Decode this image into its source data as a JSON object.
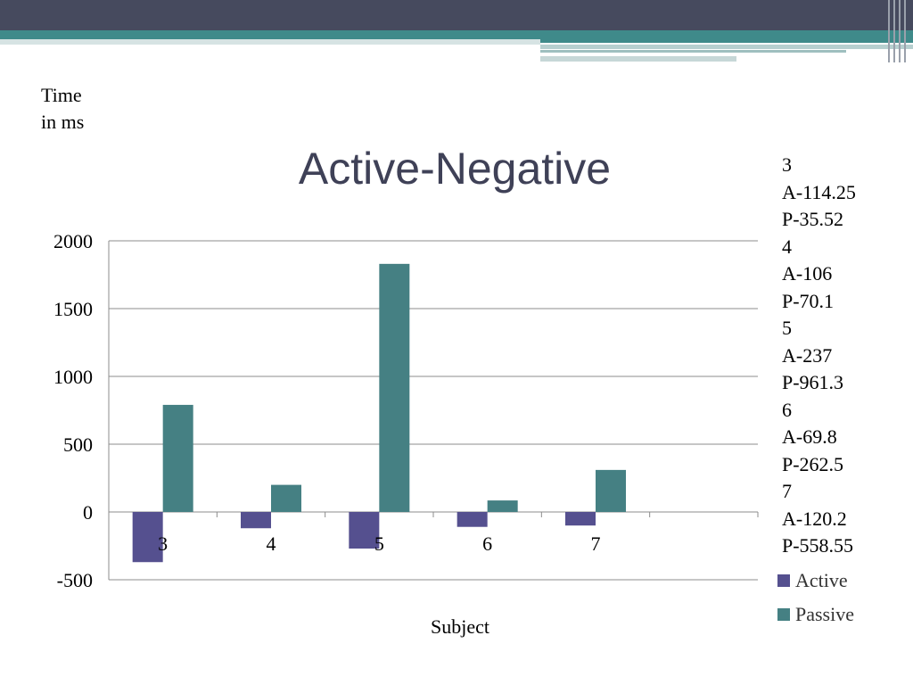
{
  "chart_data": {
    "type": "bar",
    "title": "Active-Negative",
    "ylabel_lines": [
      "Time",
      "in ms"
    ],
    "xlabel": "Subject",
    "categories": [
      "3",
      "4",
      "5",
      "6",
      "7"
    ],
    "ylim": [
      -500,
      2000
    ],
    "yticks": [
      2000,
      1500,
      1000,
      500,
      0,
      -500
    ],
    "grid": true,
    "legend_position": "bottom-right",
    "series": [
      {
        "name": "Active",
        "color": "#55508f",
        "values": [
          -370,
          -120,
          -270,
          -110,
          -100
        ]
      },
      {
        "name": "Passive",
        "color": "#458083",
        "values": [
          790,
          200,
          1830,
          85,
          310
        ]
      }
    ],
    "notes": [
      "3",
      "A-114.25",
      "P-35.52",
      "4",
      "A-106",
      "P-70.1",
      "5",
      "A-237",
      "P-961.3",
      "6",
      "A-69.8",
      "P-262.5",
      "7",
      "A-120.2",
      "P-558.55"
    ]
  }
}
